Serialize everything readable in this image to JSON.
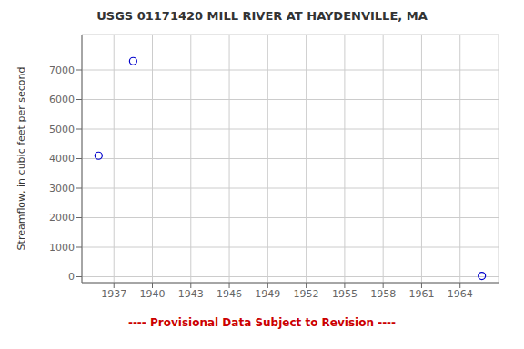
{
  "chart_data": {
    "type": "scatter",
    "title": "USGS 01171420 MILL RIVER AT HAYDENVILLE, MA",
    "ylabel": "Streamflow, in cubic feet per second",
    "x": [
      1935.8,
      1938.5,
      1965.7
    ],
    "values": [
      4100,
      7300,
      30
    ],
    "color": "#0000cc",
    "marker": "circle",
    "xlim": [
      1934.5,
      1967.0
    ],
    "ylim": [
      -200,
      8200
    ],
    "xticks": [
      1937,
      1940,
      1943,
      1946,
      1949,
      1952,
      1955,
      1958,
      1961,
      1964
    ],
    "yticks": [
      0,
      1000,
      2000,
      3000,
      4000,
      5000,
      6000,
      7000
    ],
    "grid": true,
    "annotations": [
      {
        "text": "---- Provisional Data Subject to Revision ----",
        "color": "#cc0000"
      }
    ]
  }
}
